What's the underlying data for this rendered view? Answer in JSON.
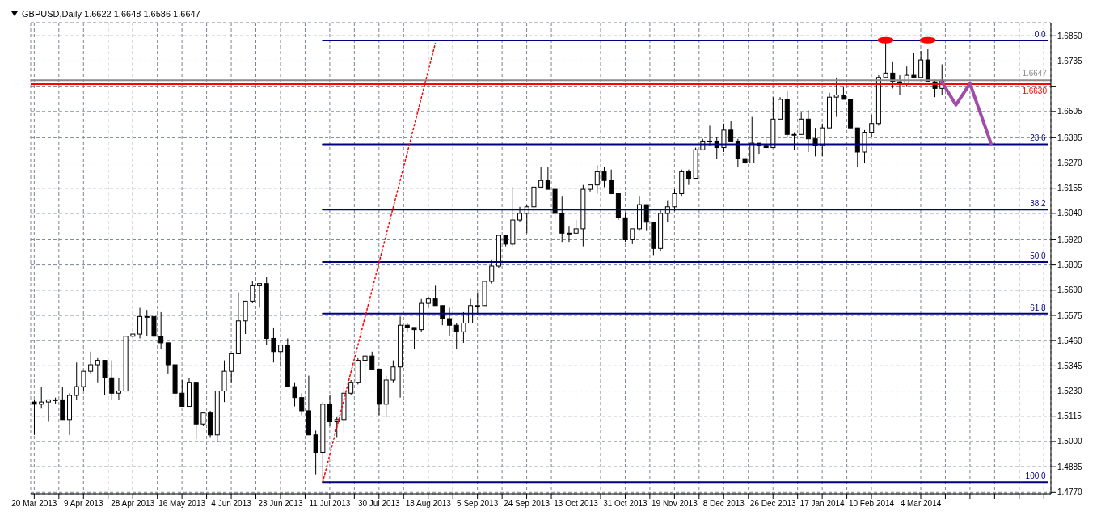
{
  "chart_data": {
    "type": "candlestick",
    "title": "GBPUSD,Daily  1.6622 1.6648 1.6586 1.6647",
    "color": "#000000",
    "categories": [
      "20 Mar 2013",
      null,
      null,
      null,
      null,
      null,
      null,
      "9 Apr 2013",
      null,
      null,
      null,
      null,
      null,
      null,
      "28 Apr 2013",
      null,
      null,
      null,
      null,
      null,
      null,
      "16 May 2013",
      null,
      null,
      null,
      null,
      null,
      null,
      "4 Jun 2013",
      null,
      null,
      null,
      null,
      null,
      null,
      "23 Jun 2013",
      null,
      null,
      null,
      null,
      null,
      null,
      "11 Jul 2013",
      null,
      null,
      null,
      null,
      null,
      null,
      "30 Jul 2013",
      null,
      null,
      null,
      null,
      null,
      null,
      "18 Aug 2013",
      null,
      null,
      null,
      null,
      null,
      null,
      "5 Sep 2013",
      null,
      null,
      null,
      null,
      null,
      null,
      "24 Sep 2013",
      null,
      null,
      null,
      null,
      null,
      null,
      "13 Oct 2013",
      null,
      null,
      null,
      null,
      null,
      null,
      "31 Oct 2013",
      null,
      null,
      null,
      null,
      null,
      null,
      "19 Nov 2013",
      null,
      null,
      null,
      null,
      null,
      null,
      "8 Dec 2013",
      null,
      null,
      null,
      null,
      null,
      null,
      "26 Dec 2013",
      null,
      null,
      null,
      null,
      null,
      null,
      "17 Jan 2014",
      null,
      null,
      null,
      null,
      null,
      null,
      "10 Feb 2014",
      null,
      null,
      null,
      null,
      null,
      null,
      "4 Mar 2014",
      null,
      null,
      null,
      null,
      null,
      null,
      null,
      null,
      null,
      null,
      null,
      null,
      null,
      null,
      null,
      null,
      null,
      null
    ],
    "ohlc": [
      [
        1.518,
        1.519,
        1.503,
        1.517
      ],
      [
        1.517,
        1.525,
        1.515,
        1.518
      ],
      [
        1.518,
        1.519,
        1.509,
        1.519
      ],
      [
        1.519,
        1.52,
        1.517,
        1.519
      ],
      [
        1.519,
        1.525,
        1.51,
        1.51
      ],
      [
        1.51,
        1.522,
        1.503,
        1.521
      ],
      [
        1.521,
        1.536,
        1.519,
        1.525
      ],
      [
        1.525,
        1.532,
        1.523,
        1.532
      ],
      [
        1.532,
        1.541,
        1.531,
        1.535
      ],
      [
        1.535,
        1.538,
        1.527,
        1.537
      ],
      [
        1.537,
        1.537,
        1.521,
        1.529
      ],
      [
        1.529,
        1.537,
        1.519,
        1.522
      ],
      [
        1.522,
        1.529,
        1.519,
        1.523
      ],
      [
        1.523,
        1.548,
        1.523,
        1.548
      ],
      [
        1.548,
        1.549,
        1.547,
        1.549
      ],
      [
        1.549,
        1.561,
        1.547,
        1.557
      ],
      [
        1.557,
        1.56,
        1.548,
        1.557
      ],
      [
        1.557,
        1.559,
        1.544,
        1.548
      ],
      [
        1.548,
        1.559,
        1.542,
        1.545
      ],
      [
        1.545,
        1.545,
        1.531,
        1.535
      ],
      [
        1.535,
        1.535,
        1.519,
        1.522
      ],
      [
        1.522,
        1.528,
        1.516,
        1.516
      ],
      [
        1.516,
        1.529,
        1.516,
        1.527
      ],
      [
        1.527,
        1.527,
        1.501,
        1.508
      ],
      [
        1.508,
        1.513,
        1.507,
        1.513
      ],
      [
        1.513,
        1.514,
        1.502,
        1.503
      ],
      [
        1.503,
        1.523,
        1.5,
        1.523
      ],
      [
        1.523,
        1.537,
        1.518,
        1.532
      ],
      [
        1.532,
        1.54,
        1.527,
        1.54
      ],
      [
        1.54,
        1.568,
        1.54,
        1.555
      ],
      [
        1.555,
        1.564,
        1.549,
        1.564
      ],
      [
        1.564,
        1.573,
        1.563,
        1.571
      ],
      [
        1.571,
        1.572,
        1.561,
        1.572
      ],
      [
        1.572,
        1.575,
        1.544,
        1.547
      ],
      [
        1.547,
        1.552,
        1.536,
        1.541
      ],
      [
        1.541,
        1.544,
        1.534,
        1.544
      ],
      [
        1.544,
        1.547,
        1.525,
        1.525
      ],
      [
        1.525,
        1.527,
        1.516,
        1.52
      ],
      [
        1.52,
        1.522,
        1.512,
        1.514
      ],
      [
        1.514,
        1.53,
        1.503,
        1.503
      ],
      [
        1.503,
        1.505,
        1.485,
        1.495
      ],
      [
        1.495,
        1.518,
        1.481,
        1.517
      ],
      [
        1.517,
        1.521,
        1.507,
        1.509
      ],
      [
        1.509,
        1.511,
        1.502,
        1.51
      ],
      [
        1.51,
        1.526,
        1.504,
        1.522
      ],
      [
        1.522,
        1.528,
        1.521,
        1.527
      ],
      [
        1.527,
        1.538,
        1.526,
        1.537
      ],
      [
        1.537,
        1.541,
        1.526,
        1.539
      ],
      [
        1.539,
        1.541,
        1.533,
        1.533
      ],
      [
        1.533,
        1.533,
        1.512,
        1.517
      ],
      [
        1.517,
        1.53,
        1.511,
        1.528
      ],
      [
        1.528,
        1.537,
        1.527,
        1.534
      ],
      [
        1.534,
        1.557,
        1.52,
        1.553
      ],
      [
        1.553,
        1.554,
        1.55,
        1.552
      ],
      [
        1.552,
        1.552,
        1.542,
        1.551
      ],
      [
        1.551,
        1.565,
        1.55,
        1.563
      ],
      [
        1.563,
        1.566,
        1.561,
        1.565
      ],
      [
        1.565,
        1.571,
        1.562,
        1.562
      ],
      [
        1.562,
        1.562,
        1.553,
        1.556
      ],
      [
        1.556,
        1.561,
        1.548,
        1.553
      ],
      [
        1.553,
        1.554,
        1.542,
        1.55
      ],
      [
        1.55,
        1.559,
        1.545,
        1.554
      ],
      [
        1.554,
        1.565,
        1.554,
        1.562
      ],
      [
        1.562,
        1.568,
        1.558,
        1.562
      ],
      [
        1.562,
        1.573,
        1.562,
        1.573
      ],
      [
        1.573,
        1.583,
        1.572,
        1.58
      ],
      [
        1.58,
        1.594,
        1.579,
        1.594
      ],
      [
        1.594,
        1.594,
        1.589,
        1.59
      ],
      [
        1.59,
        1.616,
        1.589,
        1.601
      ],
      [
        1.601,
        1.607,
        1.6,
        1.604
      ],
      [
        1.604,
        1.608,
        1.595,
        1.607
      ],
      [
        1.607,
        1.616,
        1.603,
        1.616
      ],
      [
        1.616,
        1.625,
        1.616,
        1.619
      ],
      [
        1.619,
        1.625,
        1.615,
        1.615
      ],
      [
        1.615,
        1.617,
        1.601,
        1.604
      ],
      [
        1.604,
        1.612,
        1.591,
        1.595
      ],
      [
        1.595,
        1.598,
        1.591,
        1.595
      ],
      [
        1.595,
        1.601,
        1.595,
        1.597
      ],
      [
        1.597,
        1.617,
        1.589,
        1.615
      ],
      [
        1.615,
        1.617,
        1.614,
        1.617
      ],
      [
        1.617,
        1.626,
        1.613,
        1.623
      ],
      [
        1.623,
        1.625,
        1.616,
        1.619
      ],
      [
        1.619,
        1.624,
        1.613,
        1.613
      ],
      [
        1.613,
        1.613,
        1.601,
        1.602
      ],
      [
        1.602,
        1.604,
        1.591,
        1.592
      ],
      [
        1.592,
        1.597,
        1.59,
        1.597
      ],
      [
        1.597,
        1.612,
        1.596,
        1.608
      ],
      [
        1.608,
        1.608,
        1.596,
        1.6
      ],
      [
        1.6,
        1.6,
        1.585,
        1.588
      ],
      [
        1.588,
        1.606,
        1.587,
        1.604
      ],
      [
        1.604,
        1.61,
        1.6,
        1.607
      ],
      [
        1.607,
        1.615,
        1.605,
        1.613
      ],
      [
        1.613,
        1.624,
        1.612,
        1.623
      ],
      [
        1.623,
        1.624,
        1.617,
        1.62
      ],
      [
        1.62,
        1.634,
        1.62,
        1.633
      ],
      [
        1.633,
        1.638,
        1.633,
        1.637
      ],
      [
        1.637,
        1.644,
        1.635,
        1.637
      ],
      [
        1.637,
        1.639,
        1.629,
        1.634
      ],
      [
        1.634,
        1.645,
        1.632,
        1.642
      ],
      [
        1.642,
        1.646,
        1.637,
        1.637
      ],
      [
        1.637,
        1.638,
        1.625,
        1.629
      ],
      [
        1.629,
        1.63,
        1.621,
        1.627
      ],
      [
        1.627,
        1.648,
        1.627,
        1.636
      ],
      [
        1.636,
        1.636,
        1.631,
        1.635
      ],
      [
        1.635,
        1.638,
        1.634,
        1.634
      ],
      [
        1.634,
        1.657,
        1.634,
        1.647
      ],
      [
        1.647,
        1.657,
        1.647,
        1.656
      ],
      [
        1.656,
        1.66,
        1.639,
        1.64
      ],
      [
        1.64,
        1.641,
        1.633,
        1.64
      ],
      [
        1.64,
        1.65,
        1.64,
        1.647
      ],
      [
        1.647,
        1.651,
        1.632,
        1.638
      ],
      [
        1.638,
        1.643,
        1.63,
        1.635
      ],
      [
        1.635,
        1.645,
        1.63,
        1.643
      ],
      [
        1.643,
        1.659,
        1.643,
        1.657
      ],
      [
        1.657,
        1.666,
        1.648,
        1.658
      ],
      [
        1.658,
        1.662,
        1.656,
        1.656
      ],
      [
        1.656,
        1.656,
        1.643,
        1.643
      ],
      [
        1.643,
        1.643,
        1.625,
        1.632
      ],
      [
        1.632,
        1.642,
        1.627,
        1.641
      ],
      [
        1.641,
        1.649,
        1.639,
        1.645
      ],
      [
        1.645,
        1.667,
        1.644,
        1.666
      ],
      [
        1.666,
        1.682,
        1.666,
        1.668
      ],
      [
        1.668,
        1.673,
        1.661,
        1.664
      ],
      [
        1.664,
        1.667,
        1.658,
        1.663
      ],
      [
        1.663,
        1.671,
        1.662,
        1.667
      ],
      [
        1.667,
        1.677,
        1.666,
        1.666
      ],
      [
        1.666,
        1.678,
        1.666,
        1.674
      ],
      [
        1.674,
        1.679,
        1.664,
        1.664
      ],
      [
        1.664,
        1.665,
        1.657,
        1.661
      ],
      [
        1.661,
        1.672,
        1.658,
        1.6647
      ],
      null,
      null,
      null,
      null,
      null,
      null,
      null,
      null,
      null,
      null,
      null,
      null,
      null,
      null,
      null
    ],
    "ylim": [
      1.476,
      1.691
    ],
    "yticks": [
      {
        "value": 1.477,
        "label": "1.4770"
      },
      {
        "value": 1.4885,
        "label": "1.4885"
      },
      {
        "value": 1.5,
        "label": "1.5000"
      },
      {
        "value": 1.5115,
        "label": "1.5115"
      },
      {
        "value": 1.523,
        "label": "1.5230"
      },
      {
        "value": 1.5345,
        "label": "1.5345"
      },
      {
        "value": 1.546,
        "label": "1.5460"
      },
      {
        "value": 1.5575,
        "label": "1.5575"
      },
      {
        "value": 1.569,
        "label": "1.5690"
      },
      {
        "value": 1.5805,
        "label": "1.5805"
      },
      {
        "value": 1.592,
        "label": "1.5920"
      },
      {
        "value": 1.604,
        "label": "1.6040"
      },
      {
        "value": 1.6155,
        "label": "1.6155"
      },
      {
        "value": 1.627,
        "label": "1.6270"
      },
      {
        "value": 1.6385,
        "label": "1.6385"
      },
      {
        "value": 1.6505,
        "label": "1.6505"
      },
      {
        "value": 1.662,
        "label": null
      },
      {
        "value": 1.6735,
        "label": "1.6735"
      },
      {
        "value": 1.685,
        "label": "1.6850"
      }
    ],
    "grid": true,
    "ref_lines": [
      {
        "axis": "y",
        "value": 1.663,
        "label": "1.6630",
        "color": "#ff0000"
      },
      {
        "axis": "y",
        "value": 1.6647,
        "label": "1.6647",
        "color": "#8a8a8a"
      }
    ],
    "series": [
      {
        "type": "line",
        "name": "0.0",
        "color": "#000080",
        "line_style": "solid",
        "values": [
          null,
          null,
          null,
          null,
          null,
          null,
          null,
          null,
          null,
          null,
          null,
          null,
          null,
          null,
          null,
          null,
          null,
          null,
          null,
          null,
          null,
          null,
          null,
          null,
          null,
          null,
          null,
          null,
          null,
          null,
          null,
          null,
          null,
          null,
          null,
          null,
          null,
          null,
          null,
          null,
          null,
          1.6829,
          null,
          null,
          null,
          null,
          null,
          null,
          null,
          null,
          null,
          null,
          null,
          null,
          null,
          null,
          null,
          null,
          null,
          null,
          null,
          null,
          null,
          null,
          null,
          null,
          null,
          null,
          null,
          null,
          null,
          null,
          null,
          null,
          null,
          null,
          null,
          null,
          null,
          null,
          null,
          null,
          null,
          null,
          null,
          null,
          null,
          null,
          null,
          null,
          null,
          null,
          null,
          null,
          null,
          null,
          null,
          null,
          null,
          null,
          null,
          null,
          null,
          null,
          null,
          null,
          null,
          null,
          null,
          null,
          null,
          null,
          null,
          null,
          null,
          null,
          null,
          null,
          null,
          null,
          null,
          null,
          null,
          null,
          null,
          null,
          null,
          null,
          null,
          null,
          null,
          null,
          null,
          null,
          null,
          null,
          null,
          null,
          null,
          null,
          null,
          null,
          null,
          null,
          1.6829
        ]
      },
      {
        "type": "line",
        "name": "23.6",
        "color": "#000080",
        "line_style": "solid",
        "values": [
          null,
          null,
          null,
          null,
          null,
          null,
          null,
          null,
          null,
          null,
          null,
          null,
          null,
          null,
          null,
          null,
          null,
          null,
          null,
          null,
          null,
          null,
          null,
          null,
          null,
          null,
          null,
          null,
          null,
          null,
          null,
          null,
          null,
          null,
          null,
          null,
          null,
          null,
          null,
          null,
          null,
          1.6355,
          null,
          null,
          null,
          null,
          null,
          null,
          null,
          null,
          null,
          null,
          null,
          null,
          null,
          null,
          null,
          null,
          null,
          null,
          null,
          null,
          null,
          null,
          null,
          null,
          null,
          null,
          null,
          null,
          null,
          null,
          null,
          null,
          null,
          null,
          null,
          null,
          null,
          null,
          null,
          null,
          null,
          null,
          null,
          null,
          null,
          null,
          null,
          null,
          null,
          null,
          null,
          null,
          null,
          null,
          null,
          null,
          null,
          null,
          null,
          null,
          null,
          null,
          null,
          null,
          null,
          null,
          null,
          null,
          null,
          null,
          null,
          null,
          null,
          null,
          null,
          null,
          null,
          null,
          null,
          null,
          null,
          null,
          null,
          null,
          null,
          null,
          null,
          null,
          null,
          null,
          null,
          null,
          null,
          null,
          null,
          null,
          null,
          null,
          null,
          null,
          null,
          null,
          1.6355
        ]
      },
      {
        "type": "line",
        "name": "38.2",
        "color": "#000080",
        "line_style": "solid",
        "values": [
          null,
          null,
          null,
          null,
          null,
          null,
          null,
          null,
          null,
          null,
          null,
          null,
          null,
          null,
          null,
          null,
          null,
          null,
          null,
          null,
          null,
          null,
          null,
          null,
          null,
          null,
          null,
          null,
          null,
          null,
          null,
          null,
          null,
          null,
          null,
          null,
          null,
          null,
          null,
          null,
          null,
          1.6057,
          null,
          null,
          null,
          null,
          null,
          null,
          null,
          null,
          null,
          null,
          null,
          null,
          null,
          null,
          null,
          null,
          null,
          null,
          null,
          null,
          null,
          null,
          null,
          null,
          null,
          null,
          null,
          null,
          null,
          null,
          null,
          null,
          null,
          null,
          null,
          null,
          null,
          null,
          null,
          null,
          null,
          null,
          null,
          null,
          null,
          null,
          null,
          null,
          null,
          null,
          null,
          null,
          null,
          null,
          null,
          null,
          null,
          null,
          null,
          null,
          null,
          null,
          null,
          null,
          null,
          null,
          null,
          null,
          null,
          null,
          null,
          null,
          null,
          null,
          null,
          null,
          null,
          null,
          null,
          null,
          null,
          null,
          null,
          null,
          null,
          null,
          null,
          null,
          null,
          null,
          null,
          null,
          null,
          null,
          null,
          null,
          null,
          null,
          null,
          null,
          null,
          null,
          1.6057
        ]
      },
      {
        "type": "line",
        "name": "50.0",
        "color": "#000080",
        "line_style": "solid",
        "values": [
          null,
          null,
          null,
          null,
          null,
          null,
          null,
          null,
          null,
          null,
          null,
          null,
          null,
          null,
          null,
          null,
          null,
          null,
          null,
          null,
          null,
          null,
          null,
          null,
          null,
          null,
          null,
          null,
          null,
          null,
          null,
          null,
          null,
          null,
          null,
          null,
          null,
          null,
          null,
          null,
          null,
          1.5818,
          null,
          null,
          null,
          null,
          null,
          null,
          null,
          null,
          null,
          null,
          null,
          null,
          null,
          null,
          null,
          null,
          null,
          null,
          null,
          null,
          null,
          null,
          null,
          null,
          null,
          null,
          null,
          null,
          null,
          null,
          null,
          null,
          null,
          null,
          null,
          null,
          null,
          null,
          null,
          null,
          null,
          null,
          null,
          null,
          null,
          null,
          null,
          null,
          null,
          null,
          null,
          null,
          null,
          null,
          null,
          null,
          null,
          null,
          null,
          null,
          null,
          null,
          null,
          null,
          null,
          null,
          null,
          null,
          null,
          null,
          null,
          null,
          null,
          null,
          null,
          null,
          null,
          null,
          null,
          null,
          null,
          null,
          null,
          null,
          null,
          null,
          null,
          null,
          null,
          null,
          null,
          null,
          null,
          null,
          null,
          null,
          null,
          null,
          null,
          null,
          null,
          null,
          1.5818
        ]
      },
      {
        "type": "line",
        "name": "61.8",
        "color": "#000080",
        "line_style": "solid",
        "values": [
          null,
          null,
          null,
          null,
          null,
          null,
          null,
          null,
          null,
          null,
          null,
          null,
          null,
          null,
          null,
          null,
          null,
          null,
          null,
          null,
          null,
          null,
          null,
          null,
          null,
          null,
          null,
          null,
          null,
          null,
          null,
          null,
          null,
          null,
          null,
          null,
          null,
          null,
          null,
          null,
          null,
          1.5583,
          null,
          null,
          null,
          null,
          null,
          null,
          null,
          null,
          null,
          null,
          null,
          null,
          null,
          null,
          null,
          null,
          null,
          null,
          null,
          null,
          null,
          null,
          null,
          null,
          null,
          null,
          null,
          null,
          null,
          null,
          null,
          null,
          null,
          null,
          null,
          null,
          null,
          null,
          null,
          null,
          null,
          null,
          null,
          null,
          null,
          null,
          null,
          null,
          null,
          null,
          null,
          null,
          null,
          null,
          null,
          null,
          null,
          null,
          null,
          null,
          null,
          null,
          null,
          null,
          null,
          null,
          null,
          null,
          null,
          null,
          null,
          null,
          null,
          null,
          null,
          null,
          null,
          null,
          null,
          null,
          null,
          null,
          null,
          null,
          null,
          null,
          null,
          null,
          null,
          null,
          null,
          null,
          null,
          null,
          null,
          null,
          null,
          null,
          null,
          null,
          null,
          null,
          1.5583
        ]
      },
      {
        "type": "line",
        "name": "100.0",
        "color": "#000080",
        "line_style": "solid",
        "values": [
          null,
          null,
          null,
          null,
          null,
          null,
          null,
          null,
          null,
          null,
          null,
          null,
          null,
          null,
          null,
          null,
          null,
          null,
          null,
          null,
          null,
          null,
          null,
          null,
          null,
          null,
          null,
          null,
          null,
          null,
          null,
          null,
          null,
          null,
          null,
          null,
          null,
          null,
          null,
          null,
          null,
          1.4814,
          null,
          null,
          null,
          null,
          null,
          null,
          null,
          null,
          null,
          null,
          null,
          null,
          null,
          null,
          null,
          null,
          null,
          null,
          null,
          null,
          null,
          null,
          null,
          null,
          null,
          null,
          null,
          null,
          null,
          null,
          null,
          null,
          null,
          null,
          null,
          null,
          null,
          null,
          null,
          null,
          null,
          null,
          null,
          null,
          null,
          null,
          null,
          null,
          null,
          null,
          null,
          null,
          null,
          null,
          null,
          null,
          null,
          null,
          null,
          null,
          null,
          null,
          null,
          null,
          null,
          null,
          null,
          null,
          null,
          null,
          null,
          null,
          null,
          null,
          null,
          null,
          null,
          null,
          null,
          null,
          null,
          null,
          null,
          null,
          null,
          null,
          null,
          null,
          null,
          null,
          null,
          null,
          null,
          null,
          null,
          null,
          null,
          null,
          null,
          null,
          null,
          null,
          1.4814
        ]
      },
      {
        "type": "line",
        "color": "#ff0000",
        "line_style": "dotted",
        "values": [
          null,
          null,
          null,
          null,
          null,
          null,
          null,
          null,
          null,
          null,
          null,
          null,
          null,
          null,
          null,
          null,
          null,
          null,
          null,
          null,
          null,
          null,
          null,
          null,
          null,
          null,
          null,
          null,
          null,
          null,
          null,
          null,
          null,
          null,
          null,
          null,
          null,
          null,
          null,
          null,
          null,
          1.4814,
          null,
          null,
          null,
          null,
          null,
          null,
          null,
          null,
          null,
          null,
          null,
          null,
          null,
          null,
          null,
          1.6815,
          null,
          null,
          null,
          null,
          null,
          null,
          null,
          null,
          null,
          null,
          null,
          null,
          null,
          null,
          null,
          null,
          null,
          null,
          null,
          null,
          null,
          null,
          null,
          null,
          null,
          null,
          null,
          null,
          null,
          null,
          null,
          null,
          null,
          null,
          null,
          null,
          null,
          null,
          null,
          null,
          null,
          null,
          null,
          null,
          null,
          null,
          null,
          null,
          null,
          null,
          null,
          null,
          null,
          null,
          null,
          null,
          null,
          null,
          null,
          null,
          null,
          null,
          null,
          null,
          null,
          null,
          null,
          null,
          null,
          null,
          null,
          null,
          null,
          null,
          null,
          null,
          null,
          null,
          null,
          null,
          null,
          null,
          null,
          null,
          null,
          null,
          null
        ]
      },
      {
        "type": "line",
        "color": "#a04ca8",
        "line_style": "solid",
        "values": [
          null,
          null,
          null,
          null,
          null,
          null,
          null,
          null,
          null,
          null,
          null,
          null,
          null,
          null,
          null,
          null,
          null,
          null,
          null,
          null,
          null,
          null,
          null,
          null,
          null,
          null,
          null,
          null,
          null,
          null,
          null,
          null,
          null,
          null,
          null,
          null,
          null,
          null,
          null,
          null,
          null,
          null,
          null,
          null,
          null,
          null,
          null,
          null,
          null,
          null,
          null,
          null,
          null,
          null,
          null,
          null,
          null,
          null,
          null,
          null,
          null,
          null,
          null,
          null,
          null,
          null,
          null,
          null,
          null,
          null,
          null,
          null,
          null,
          null,
          null,
          null,
          null,
          null,
          null,
          null,
          null,
          null,
          null,
          null,
          null,
          null,
          null,
          null,
          null,
          null,
          null,
          null,
          null,
          null,
          null,
          null,
          null,
          null,
          null,
          null,
          null,
          null,
          null,
          null,
          null,
          null,
          null,
          null,
          null,
          null,
          null,
          null,
          null,
          null,
          null,
          null,
          null,
          null,
          null,
          null,
          null,
          null,
          null,
          null,
          null,
          null,
          null,
          null,
          null,
          1.664,
          null,
          1.6535,
          null,
          1.6632,
          null,
          null,
          1.6358,
          null,
          null,
          null,
          null,
          null,
          null,
          null,
          null
        ]
      },
      {
        "type": "scatter",
        "color": "#ff0000",
        "marker": "circle",
        "values": [
          null,
          null,
          null,
          null,
          null,
          null,
          null,
          null,
          null,
          null,
          null,
          null,
          null,
          null,
          null,
          null,
          null,
          null,
          null,
          null,
          null,
          null,
          null,
          null,
          null,
          null,
          null,
          null,
          null,
          null,
          null,
          null,
          null,
          null,
          null,
          null,
          null,
          null,
          null,
          null,
          null,
          null,
          null,
          null,
          null,
          null,
          null,
          null,
          null,
          null,
          null,
          null,
          null,
          null,
          null,
          null,
          null,
          null,
          null,
          null,
          null,
          null,
          null,
          null,
          null,
          null,
          null,
          null,
          null,
          null,
          null,
          null,
          null,
          null,
          null,
          null,
          null,
          null,
          null,
          null,
          null,
          null,
          null,
          null,
          null,
          null,
          null,
          null,
          null,
          null,
          null,
          null,
          null,
          null,
          null,
          null,
          null,
          null,
          null,
          null,
          null,
          null,
          null,
          null,
          null,
          null,
          null,
          null,
          null,
          null,
          null,
          null,
          null,
          null,
          null,
          null,
          null,
          null,
          null,
          null,
          null,
          1.683,
          null,
          null,
          null,
          null,
          null,
          1.683,
          null,
          null,
          null,
          null,
          null,
          null,
          null,
          null,
          null,
          null,
          null,
          null,
          null,
          null,
          null,
          null,
          null
        ]
      }
    ]
  }
}
